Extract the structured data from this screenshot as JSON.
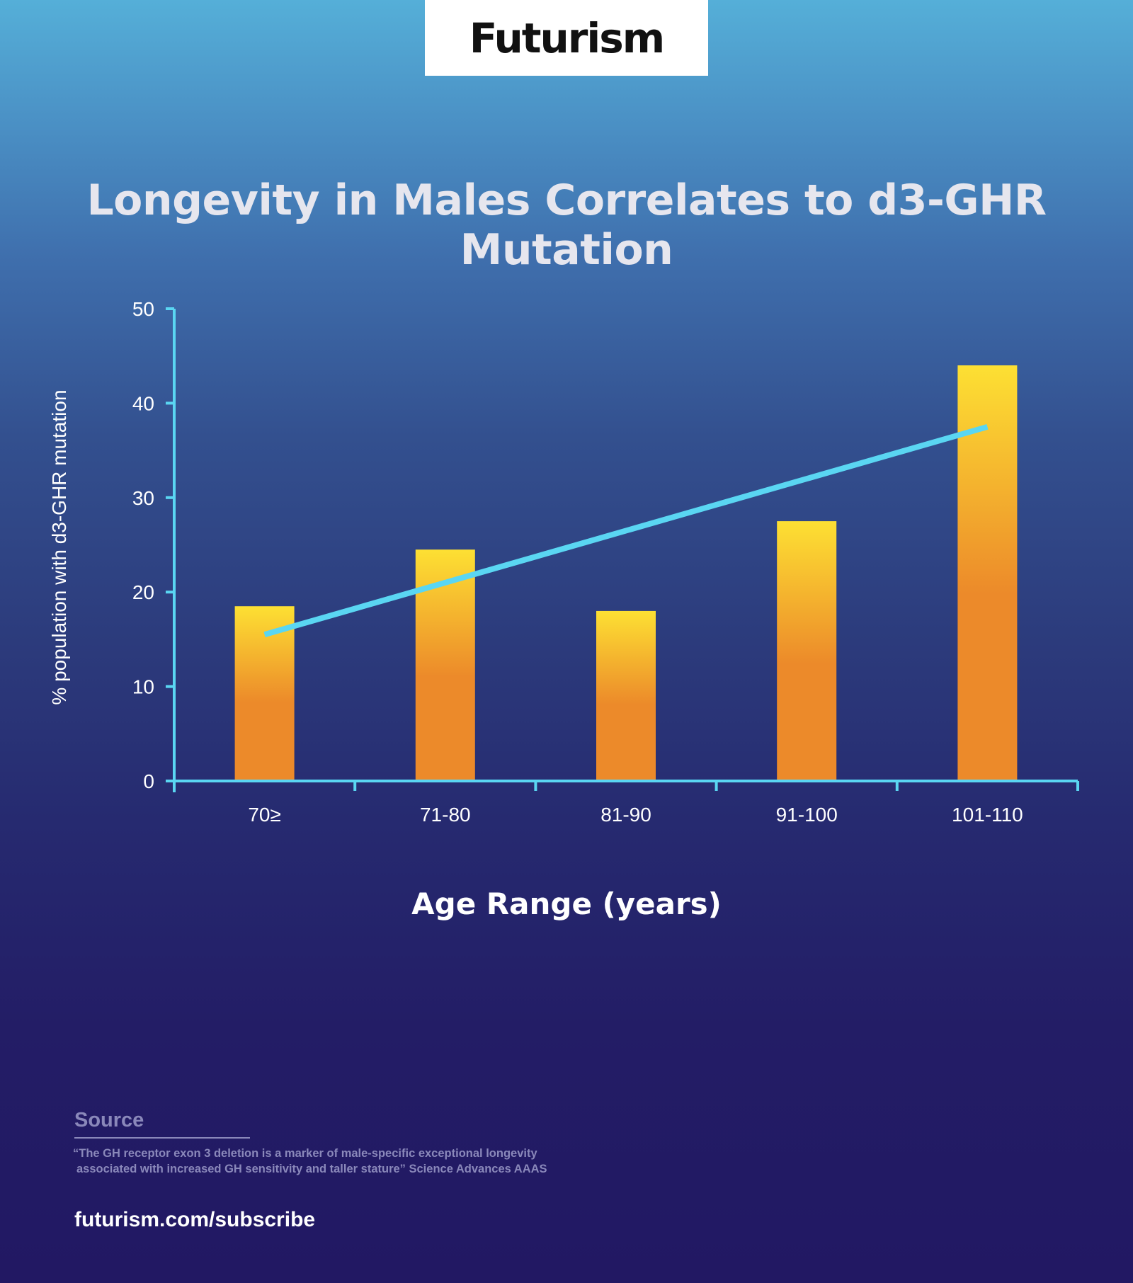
{
  "logo": {
    "text": "Futurism"
  },
  "footer": {
    "source_title": "Source",
    "source_lines": [
      "“The GH receptor exon 3 deletion is a marker of male-specific exceptional longevity",
      "associated with increased GH sensitivity and taller stature” Science Advances AAAS"
    ],
    "link": "futurism.com/subscribe"
  },
  "colors": {
    "bar_top": "#fde033",
    "bar_bottom": "#ec8a2a",
    "trend_line": "#5ad6f2",
    "axis": "#5ad6f2"
  },
  "chart_data": {
    "type": "bar",
    "title": "Longevity in Males Correlates to d3-GHR Mutation",
    "xlabel": "Age Range (years)",
    "ylabel": "% population with d3-GHR mutation",
    "categories": [
      "70≥",
      "71-80",
      "81-90",
      "91-100",
      "101-110"
    ],
    "values": [
      18.5,
      24.5,
      18,
      27.5,
      44
    ],
    "ylim": [
      0,
      50
    ],
    "yticks": [
      0,
      10,
      20,
      30,
      40,
      50
    ],
    "trend_line": {
      "start": 15.5,
      "end": 37.5
    },
    "grid": false,
    "legend": "none"
  }
}
